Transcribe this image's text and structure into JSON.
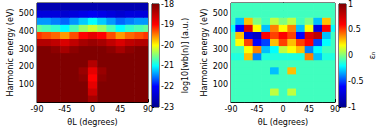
{
  "chart_data": [
    {
      "type": "heatmap",
      "x_label": "θL (degrees)",
      "y_label": "Harmonic energy (eV)",
      "xlim": [
        -90,
        90
      ],
      "xticks": [
        -90,
        -45,
        0,
        45,
        90
      ],
      "ylim": [
        0,
        560
      ],
      "yticks": [
        100,
        200,
        300,
        400,
        500
      ],
      "x": [
        -90,
        -75,
        -60,
        -45,
        -30,
        -15,
        0,
        15,
        30,
        45,
        60,
        75,
        90
      ],
      "y": [
        20,
        60,
        100,
        140,
        180,
        220,
        260,
        300,
        340,
        380,
        420,
        460,
        500,
        540
      ],
      "z": [
        [
          -17.6,
          -17.6,
          -17.6,
          -17.6,
          -17.6,
          -17.6,
          -18.3,
          -17.6,
          -17.6,
          -17.6,
          -17.6,
          -17.6,
          -17.6
        ],
        [
          -17.6,
          -17.6,
          -17.6,
          -17.6,
          -17.6,
          -17.8,
          -18.6,
          -17.8,
          -17.6,
          -17.6,
          -17.6,
          -17.6,
          -17.6
        ],
        [
          -17.6,
          -17.6,
          -17.6,
          -17.6,
          -17.7,
          -18.0,
          -18.8,
          -18.0,
          -17.7,
          -17.6,
          -17.6,
          -17.6,
          -17.6
        ],
        [
          -17.6,
          -17.6,
          -17.6,
          -17.6,
          -17.7,
          -18.1,
          -19.0,
          -18.1,
          -17.7,
          -17.6,
          -17.6,
          -17.6,
          -17.6
        ],
        [
          -17.6,
          -17.6,
          -17.6,
          -17.6,
          -17.7,
          -18.2,
          -18.8,
          -18.2,
          -17.7,
          -17.6,
          -17.6,
          -17.6,
          -17.6
        ],
        [
          -17.6,
          -17.6,
          -17.6,
          -17.6,
          -17.6,
          -17.9,
          -18.4,
          -17.9,
          -17.6,
          -17.6,
          -17.6,
          -17.6,
          -17.6
        ],
        [
          -17.8,
          -17.8,
          -17.8,
          -17.8,
          -17.8,
          -17.8,
          -17.8,
          -17.8,
          -17.8,
          -17.8,
          -17.8,
          -17.8,
          -17.8
        ],
        [
          -18.0,
          -18.0,
          -18.1,
          -18.3,
          -18.1,
          -18.0,
          -18.0,
          -18.0,
          -18.1,
          -18.3,
          -18.1,
          -18.0,
          -18.0
        ],
        [
          -18.4,
          -18.4,
          -18.5,
          -18.7,
          -18.5,
          -18.3,
          -18.2,
          -18.3,
          -18.5,
          -18.7,
          -18.5,
          -18.4,
          -18.4
        ],
        [
          -19.2,
          -19.3,
          -19.4,
          -19.6,
          -19.3,
          -19.0,
          -18.8,
          -19.0,
          -19.3,
          -19.6,
          -19.4,
          -19.3,
          -19.2
        ],
        [
          -20.6,
          -20.7,
          -20.8,
          -21.0,
          -20.7,
          -20.4,
          -20.2,
          -20.4,
          -20.7,
          -21.0,
          -20.8,
          -20.7,
          -20.6
        ],
        [
          -21.4,
          -21.4,
          -21.5,
          -21.6,
          -21.4,
          -21.2,
          -21.0,
          -21.2,
          -21.4,
          -21.6,
          -21.5,
          -21.4,
          -21.4
        ],
        [
          -22.3,
          -22.3,
          -22.3,
          -22.4,
          -22.3,
          -22.2,
          -22.1,
          -22.2,
          -22.3,
          -22.4,
          -22.3,
          -22.3,
          -22.3
        ],
        [
          -22.7,
          -22.7,
          -22.7,
          -22.7,
          -22.7,
          -22.7,
          -22.7,
          -22.7,
          -22.7,
          -22.7,
          -22.7,
          -22.7,
          -22.7
        ]
      ],
      "colorbar_label": "log10[wb(n)] (a.u.)",
      "colorbar_range": [
        -23,
        -18
      ],
      "colorbar_ticks": [
        -18,
        -19,
        -20,
        -21,
        -22,
        -23
      ]
    },
    {
      "type": "heatmap",
      "x_label": "θL (degrees)",
      "y_label": "Harmonic energy (eV)",
      "xlim": [
        -90,
        90
      ],
      "xticks": [
        -90,
        -45,
        0,
        45,
        90
      ],
      "ylim": [
        0,
        560
      ],
      "yticks": [
        100,
        200,
        300,
        400,
        500
      ],
      "x": [
        -90,
        -75,
        -60,
        -45,
        -30,
        -15,
        0,
        15,
        30,
        45,
        60,
        75,
        90
      ],
      "y": [
        20,
        60,
        100,
        140,
        180,
        220,
        260,
        300,
        340,
        380,
        420,
        460,
        500,
        540
      ],
      "z": [
        [
          -0.1,
          -0.1,
          -0.1,
          -0.1,
          -0.1,
          -0.1,
          -0.1,
          -0.1,
          -0.1,
          -0.1,
          -0.1,
          -0.1,
          -0.1
        ],
        [
          -0.1,
          -0.1,
          -0.1,
          -0.1,
          -0.1,
          0.1,
          -0.1,
          0.1,
          -0.1,
          -0.1,
          -0.1,
          -0.1,
          -0.1
        ],
        [
          -0.1,
          -0.1,
          -0.1,
          -0.1,
          -0.1,
          -0.1,
          -0.1,
          -0.1,
          -0.1,
          -0.1,
          -0.1,
          -0.1,
          -0.1
        ],
        [
          -0.1,
          -0.1,
          -0.1,
          -0.1,
          -0.1,
          -0.1,
          -0.1,
          -0.1,
          -0.1,
          -0.1,
          -0.1,
          -0.1,
          -0.1
        ],
        [
          -0.1,
          -0.1,
          -0.1,
          -0.1,
          -0.1,
          -0.3,
          -0.1,
          0.3,
          -0.1,
          -0.1,
          -0.1,
          -0.1,
          -0.1
        ],
        [
          -0.1,
          -0.1,
          -0.1,
          -0.1,
          -0.1,
          -0.1,
          -0.1,
          -0.1,
          -0.1,
          -0.1,
          -0.1,
          -0.1,
          -0.1
        ],
        [
          -0.15,
          -0.15,
          0.3,
          -0.4,
          -0.15,
          -0.15,
          -0.15,
          -0.15,
          -0.15,
          0.4,
          -0.3,
          -0.15,
          -0.15
        ],
        [
          -0.1,
          -0.1,
          0.2,
          0.4,
          -0.3,
          -0.2,
          0.1,
          0.2,
          0.3,
          -0.4,
          -0.2,
          -0.1,
          -0.1
        ],
        [
          -0.1,
          0.2,
          0.5,
          -0.6,
          -0.5,
          0.3,
          0.5,
          0.3,
          0.5,
          0.6,
          -0.5,
          -0.2,
          -0.1
        ],
        [
          -0.1,
          0.3,
          -0.7,
          -0.8,
          0.6,
          0.5,
          0.6,
          0.5,
          -0.6,
          0.7,
          0.8,
          -0.3,
          -0.1
        ],
        [
          -0.2,
          -0.6,
          0.7,
          0.2,
          -0.3,
          0.4,
          0.2,
          0.4,
          -0.3,
          0.2,
          -0.7,
          0.6,
          -0.2
        ],
        [
          -0.1,
          -0.3,
          0.3,
          0,
          -0.1,
          0.1,
          0,
          0.1,
          -0.1,
          0,
          -0.3,
          0.3,
          -0.1
        ],
        [
          -0.1,
          -0.1,
          -0.1,
          -0.1,
          -0.1,
          -0.1,
          -0.1,
          -0.1,
          -0.1,
          -0.1,
          -0.1,
          -0.1,
          -0.1
        ],
        [
          -0.1,
          -0.1,
          -0.1,
          -0.1,
          -0.1,
          -0.1,
          -0.1,
          -0.1,
          -0.1,
          -0.1,
          -0.1,
          -0.1,
          -0.1
        ]
      ],
      "colorbar_label": "εₙ",
      "colorbar_range": [
        -1,
        1
      ],
      "colorbar_ticks": [
        -1,
        -0.5,
        0,
        0.5,
        1
      ]
    }
  ]
}
